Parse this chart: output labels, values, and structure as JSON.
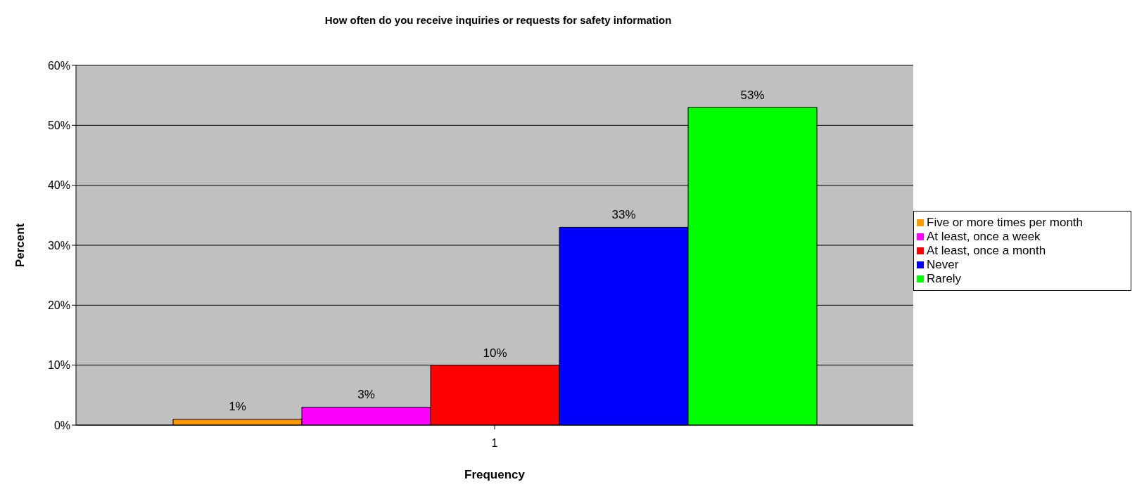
{
  "chart_data": {
    "type": "bar",
    "title": "How often do you receive inquiries or requests for safety information",
    "xlabel": "Frequency",
    "ylabel": "Percent",
    "categories": [
      "1"
    ],
    "series": [
      {
        "name": "Five or more times per month",
        "color": "#ff9900",
        "values": [
          1
        ],
        "value_labels": [
          "1%"
        ]
      },
      {
        "name": "At least, once a week",
        "color": "#ff00ff",
        "values": [
          3
        ],
        "value_labels": [
          "3%"
        ]
      },
      {
        "name": "At least, once a month",
        "color": "#ff0000",
        "values": [
          10
        ],
        "value_labels": [
          "10%"
        ]
      },
      {
        "name": "Never",
        "color": "#0000ff",
        "values": [
          33
        ],
        "value_labels": [
          "33%"
        ]
      },
      {
        "name": "Rarely",
        "color": "#00ff00",
        "values": [
          53
        ],
        "value_labels": [
          "53%"
        ]
      }
    ],
    "ylim": [
      0,
      60
    ],
    "yticks": [
      {
        "value": 0,
        "label": "0%"
      },
      {
        "value": 10,
        "label": "10%"
      },
      {
        "value": 20,
        "label": "20%"
      },
      {
        "value": 30,
        "label": "30%"
      },
      {
        "value": 40,
        "label": "40%"
      },
      {
        "value": 50,
        "label": "50%"
      },
      {
        "value": 60,
        "label": "60%"
      }
    ],
    "grid": "y",
    "legend": "right"
  }
}
